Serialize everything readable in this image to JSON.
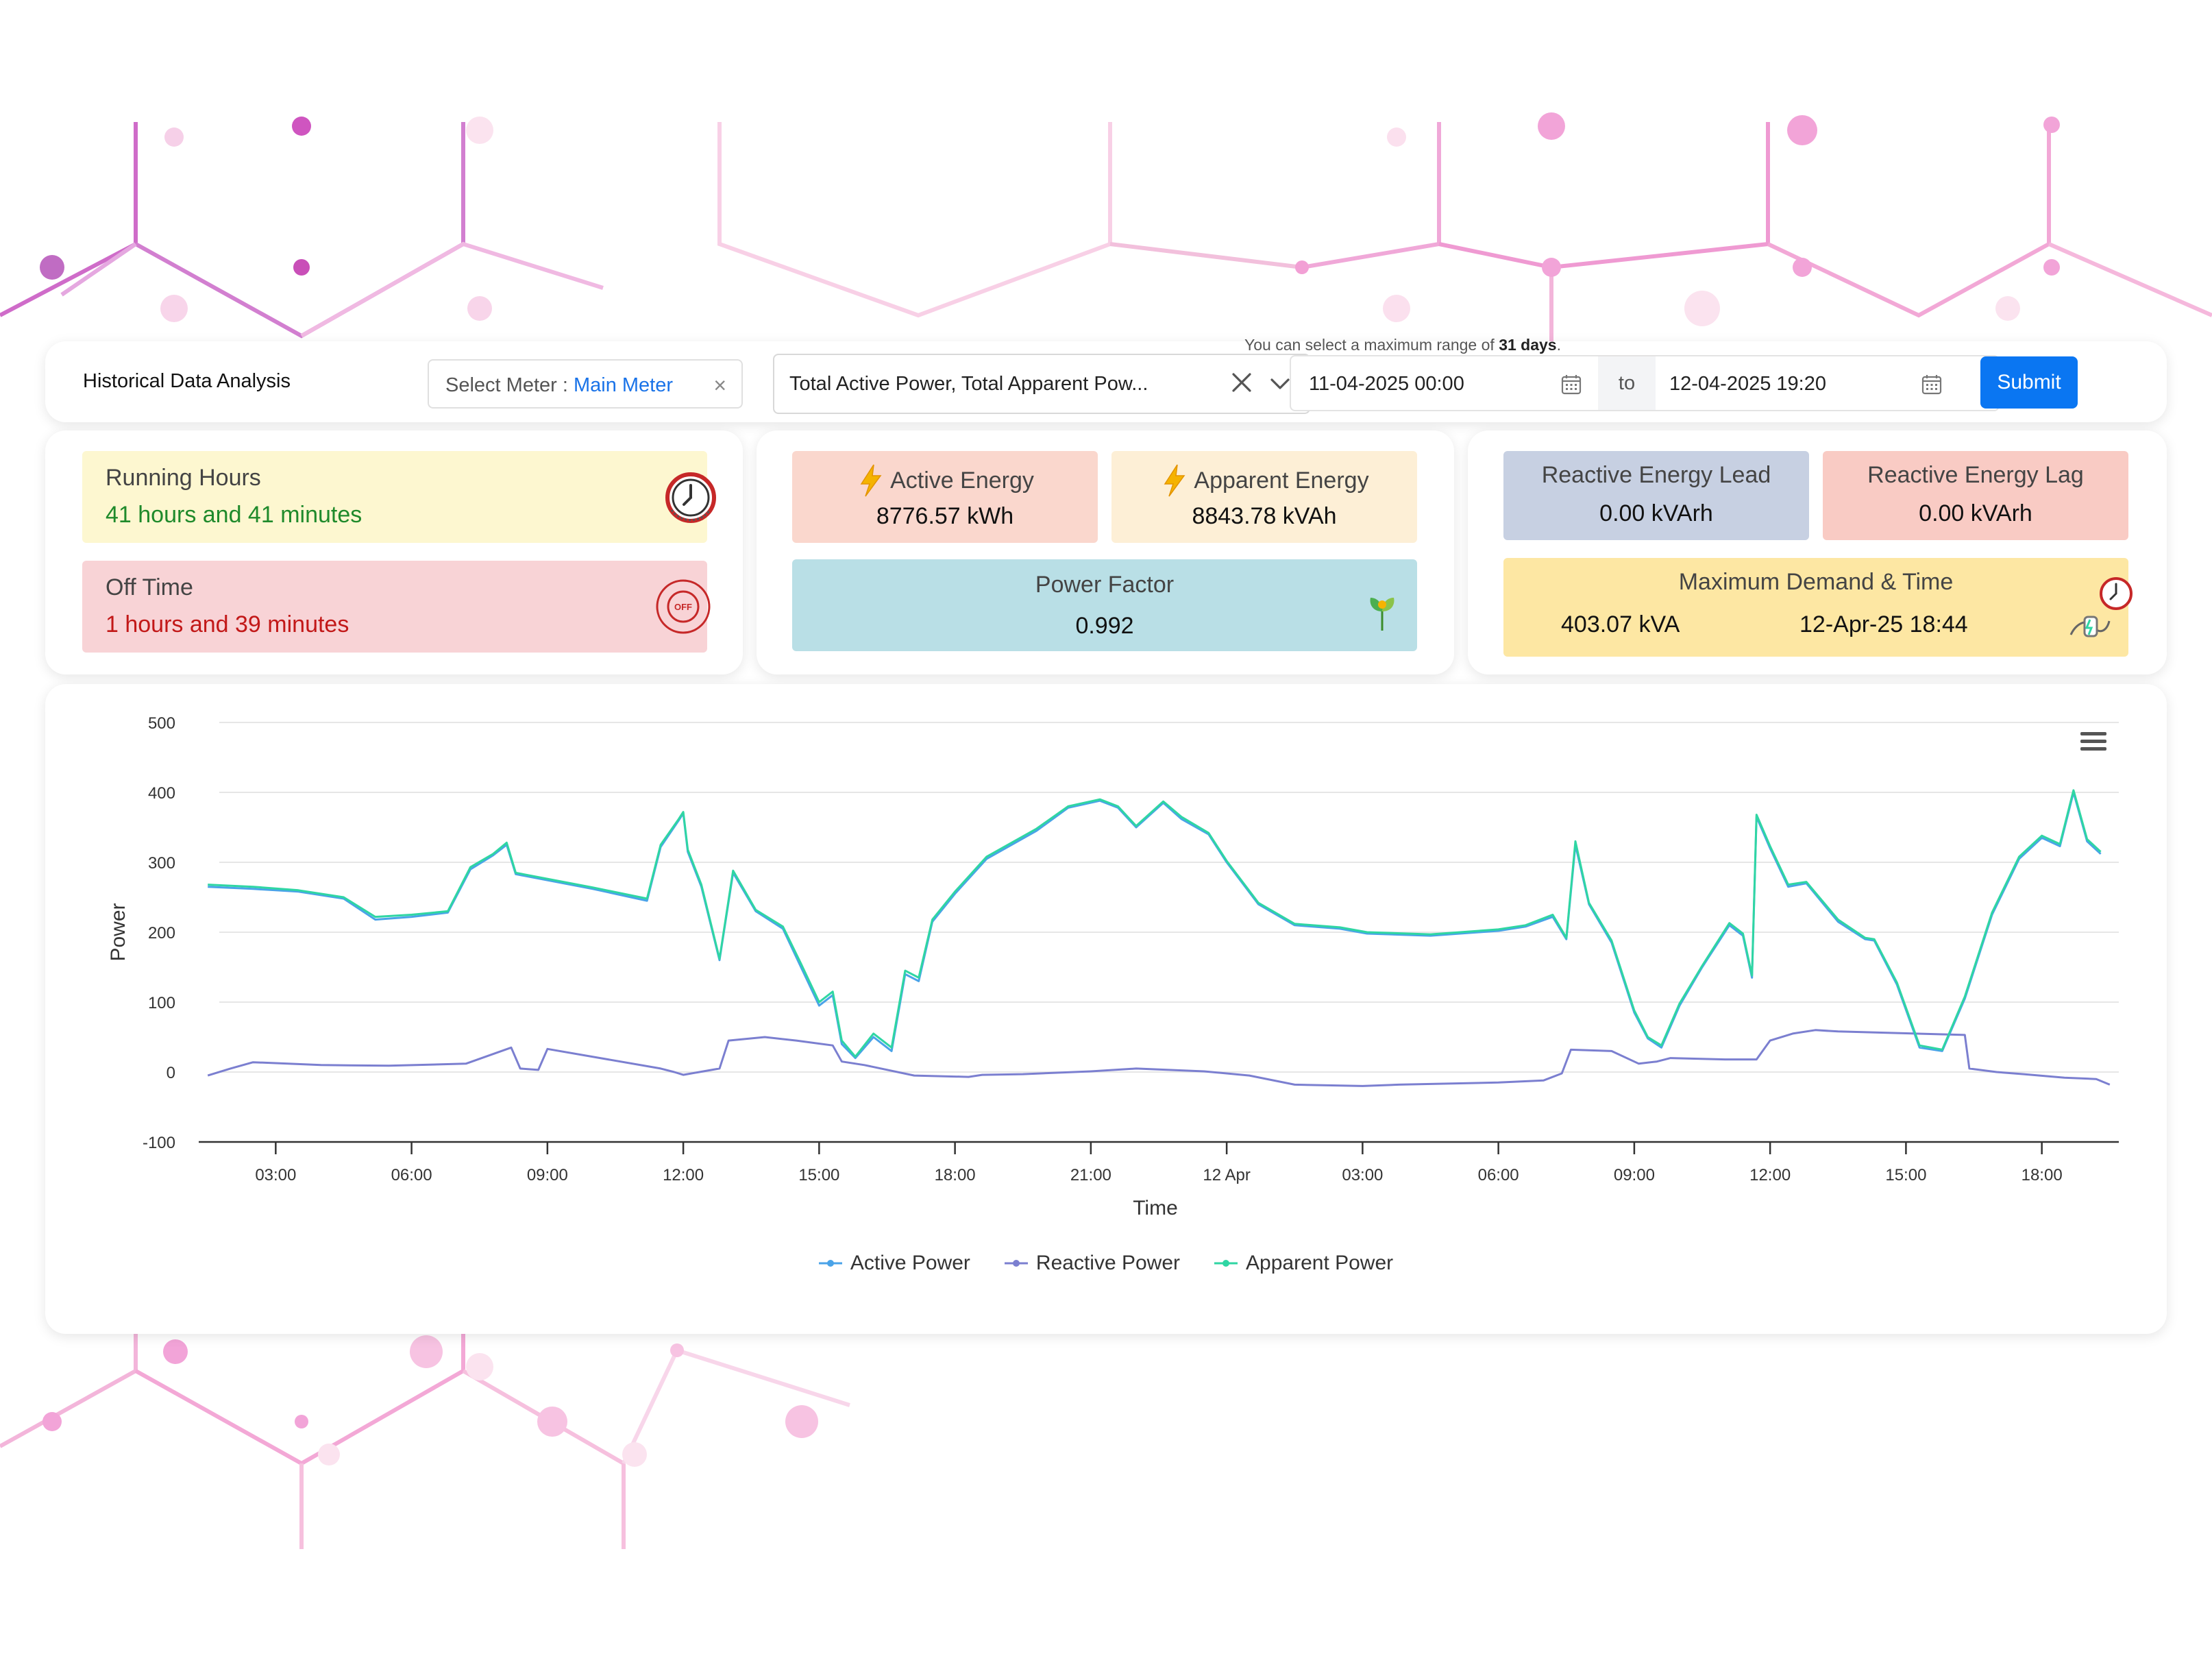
{
  "header": {
    "title": "Historical Data Analysis",
    "meter_label": "Select Meter :",
    "meter_value": "Main Meter",
    "parameters_value": "Total Active Power, Total Apparent Pow...",
    "range_hint_prefix": "You can select a maximum range of",
    "range_hint_days": "31 days",
    "range_hint_suffix": ".",
    "date_from": "11-04-2025 00:00",
    "date_to_label": "to",
    "date_to": "12-04-2025 19:20",
    "submit_label": "Submit"
  },
  "hours_panel": {
    "running_label": "Running Hours",
    "running_value": "41 hours and 41 minutes",
    "off_label": "Off Time",
    "off_value": "1 hours and 39 minutes",
    "off_icon_text": "OFF"
  },
  "energy_panel": {
    "active_energy_label": "Active Energy",
    "active_energy_value": "8776.57 kWh",
    "apparent_energy_label": "Apparent Energy",
    "apparent_energy_value": "8843.78 kVAh",
    "power_factor_label": "Power Factor",
    "power_factor_value": "0.992"
  },
  "reactive_panel": {
    "lead_label": "Reactive Energy Lead",
    "lead_value": "0.00 kVArh",
    "lag_label": "Reactive Energy Lag",
    "lag_value": "0.00 kVArh",
    "md_label": "Maximum Demand & Time",
    "md_value": "403.07 kVA",
    "md_time": "12-Apr-25 18:44"
  },
  "icons": {
    "running": "gauge-icon",
    "off": "power-off-icon",
    "bolt": "lightning-bolt-icon",
    "power_factor": "plant-icon",
    "max_demand": "gauge-plug-icon",
    "calendar": "calendar-icon",
    "clear": "close-icon",
    "dropdown": "chevron-down-icon",
    "chart_menu": "hamburger-menu-icon"
  },
  "colors": {
    "accent": "#0a76f2",
    "apparent": "#2fd6a3",
    "reactive": "#7b7fd0",
    "active": "#4aa3e8",
    "running_text": "#1f8a2b",
    "off_text": "#c21818"
  },
  "chart_data": {
    "type": "line",
    "xlabel": "Time",
    "ylabel": "Power",
    "ylim": [
      -100,
      500
    ],
    "yticks": [
      -100,
      0,
      100,
      200,
      300,
      400,
      500
    ],
    "x_range_hours": [
      1.3,
      43.7
    ],
    "xticks": [
      {
        "h": 3,
        "label": "03:00"
      },
      {
        "h": 6,
        "label": "06:00"
      },
      {
        "h": 9,
        "label": "09:00"
      },
      {
        "h": 12,
        "label": "12:00"
      },
      {
        "h": 15,
        "label": "15:00"
      },
      {
        "h": 18,
        "label": "18:00"
      },
      {
        "h": 21,
        "label": "21:00"
      },
      {
        "h": 24,
        "label": "12 Apr"
      },
      {
        "h": 27,
        "label": "03:00"
      },
      {
        "h": 30,
        "label": "06:00"
      },
      {
        "h": 33,
        "label": "09:00"
      },
      {
        "h": 36,
        "label": "12:00"
      },
      {
        "h": 39,
        "label": "15:00"
      },
      {
        "h": 42,
        "label": "18:00"
      }
    ],
    "grid": true,
    "legend_position": "bottom-center",
    "series": [
      {
        "name": "Active Power",
        "color": "#4aa3e8",
        "points": [
          [
            1.5,
            265
          ],
          [
            2.5,
            262
          ],
          [
            3.5,
            258
          ],
          [
            4.5,
            248
          ],
          [
            5.2,
            218
          ],
          [
            6,
            222
          ],
          [
            6.8,
            228
          ],
          [
            7.3,
            290
          ],
          [
            7.8,
            310
          ],
          [
            8.1,
            325
          ],
          [
            8.3,
            283
          ],
          [
            10,
            262
          ],
          [
            11.2,
            245
          ],
          [
            11.5,
            322
          ],
          [
            11.9,
            360
          ],
          [
            12,
            370
          ],
          [
            12.1,
            315
          ],
          [
            12.4,
            265
          ],
          [
            12.8,
            160
          ],
          [
            13.1,
            285
          ],
          [
            13.6,
            230
          ],
          [
            14.2,
            205
          ],
          [
            14.6,
            150
          ],
          [
            15,
            95
          ],
          [
            15.3,
            110
          ],
          [
            15.5,
            40
          ],
          [
            15.8,
            20
          ],
          [
            16.2,
            50
          ],
          [
            16.6,
            30
          ],
          [
            16.9,
            140
          ],
          [
            17.2,
            130
          ],
          [
            17.5,
            215
          ],
          [
            18,
            255
          ],
          [
            18.7,
            305
          ],
          [
            19.8,
            345
          ],
          [
            20.5,
            378
          ],
          [
            21.2,
            388
          ],
          [
            21.6,
            378
          ],
          [
            22,
            350
          ],
          [
            22.6,
            385
          ],
          [
            23,
            362
          ],
          [
            23.6,
            340
          ],
          [
            24,
            300
          ],
          [
            24.7,
            240
          ],
          [
            25.5,
            210
          ],
          [
            26.5,
            205
          ],
          [
            27.1,
            198
          ],
          [
            28.5,
            195
          ],
          [
            30,
            202
          ],
          [
            30.6,
            208
          ],
          [
            31.2,
            222
          ],
          [
            31.5,
            190
          ],
          [
            31.7,
            325
          ],
          [
            32,
            240
          ],
          [
            32.5,
            185
          ],
          [
            33,
            85
          ],
          [
            33.3,
            48
          ],
          [
            33.6,
            35
          ],
          [
            34,
            95
          ],
          [
            34.5,
            150
          ],
          [
            35.1,
            210
          ],
          [
            35.4,
            195
          ],
          [
            35.6,
            135
          ],
          [
            35.7,
            365
          ],
          [
            36,
            320
          ],
          [
            36.4,
            265
          ],
          [
            36.8,
            270
          ],
          [
            37.5,
            215
          ],
          [
            38.1,
            190
          ],
          [
            38.3,
            188
          ],
          [
            38.8,
            125
          ],
          [
            39.3,
            35
          ],
          [
            39.8,
            30
          ],
          [
            40.3,
            105
          ],
          [
            40.9,
            225
          ],
          [
            41.5,
            305
          ],
          [
            42,
            335
          ],
          [
            42.4,
            323
          ],
          [
            42.7,
            400
          ],
          [
            43,
            330
          ],
          [
            43.3,
            312
          ]
        ]
      },
      {
        "name": "Reactive Power",
        "color": "#7b7fd0",
        "points": [
          [
            1.5,
            -5
          ],
          [
            2,
            5
          ],
          [
            2.5,
            14
          ],
          [
            4,
            10
          ],
          [
            5.5,
            9
          ],
          [
            7.2,
            12
          ],
          [
            8.2,
            35
          ],
          [
            8.4,
            5
          ],
          [
            8.8,
            3
          ],
          [
            9,
            33
          ],
          [
            11.5,
            5
          ],
          [
            11.8,
            0
          ],
          [
            12,
            -4
          ],
          [
            12.8,
            5
          ],
          [
            13,
            45
          ],
          [
            13.8,
            50
          ],
          [
            14.5,
            45
          ],
          [
            15.3,
            38
          ],
          [
            15.5,
            15
          ],
          [
            16,
            10
          ],
          [
            17.1,
            -5
          ],
          [
            18.3,
            -7
          ],
          [
            18.6,
            -4
          ],
          [
            19.5,
            -3
          ],
          [
            21,
            1
          ],
          [
            22,
            5
          ],
          [
            23.5,
            1
          ],
          [
            24.5,
            -5
          ],
          [
            25.5,
            -18
          ],
          [
            27,
            -20
          ],
          [
            27.8,
            -18
          ],
          [
            30,
            -15
          ],
          [
            31,
            -12
          ],
          [
            31.4,
            -2
          ],
          [
            31.6,
            32
          ],
          [
            32.5,
            30
          ],
          [
            33.1,
            12
          ],
          [
            33.5,
            15
          ],
          [
            33.8,
            20
          ],
          [
            35,
            18
          ],
          [
            35.7,
            18
          ],
          [
            36,
            45
          ],
          [
            36.5,
            55
          ],
          [
            37,
            60
          ],
          [
            37.5,
            58
          ],
          [
            40.3,
            53
          ],
          [
            40.4,
            5
          ],
          [
            41,
            0
          ],
          [
            41.6,
            -3
          ],
          [
            42.5,
            -8
          ],
          [
            43.2,
            -10
          ],
          [
            43.5,
            -18
          ]
        ]
      },
      {
        "name": "Apparent Power",
        "color": "#2fd6a3",
        "points": [
          [
            1.5,
            268
          ],
          [
            2.5,
            265
          ],
          [
            3.5,
            260
          ],
          [
            4.5,
            250
          ],
          [
            5.2,
            222
          ],
          [
            6,
            225
          ],
          [
            6.8,
            230
          ],
          [
            7.3,
            293
          ],
          [
            7.8,
            312
          ],
          [
            8.1,
            328
          ],
          [
            8.3,
            285
          ],
          [
            10,
            264
          ],
          [
            11.2,
            248
          ],
          [
            11.5,
            325
          ],
          [
            11.9,
            362
          ],
          [
            12,
            372
          ],
          [
            12.1,
            318
          ],
          [
            12.4,
            268
          ],
          [
            12.8,
            162
          ],
          [
            13.1,
            288
          ],
          [
            13.6,
            232
          ],
          [
            14.2,
            208
          ],
          [
            14.6,
            155
          ],
          [
            15,
            100
          ],
          [
            15.3,
            115
          ],
          [
            15.5,
            45
          ],
          [
            15.8,
            22
          ],
          [
            16.2,
            55
          ],
          [
            16.6,
            35
          ],
          [
            16.9,
            145
          ],
          [
            17.2,
            135
          ],
          [
            17.5,
            218
          ],
          [
            18,
            258
          ],
          [
            18.7,
            308
          ],
          [
            19.8,
            348
          ],
          [
            20.5,
            380
          ],
          [
            21.2,
            390
          ],
          [
            21.6,
            380
          ],
          [
            22,
            352
          ],
          [
            22.6,
            387
          ],
          [
            23,
            365
          ],
          [
            23.6,
            342
          ],
          [
            24,
            302
          ],
          [
            24.7,
            242
          ],
          [
            25.5,
            212
          ],
          [
            26.5,
            207
          ],
          [
            27.1,
            200
          ],
          [
            28.5,
            197
          ],
          [
            30,
            204
          ],
          [
            30.6,
            210
          ],
          [
            31.2,
            225
          ],
          [
            31.5,
            192
          ],
          [
            31.7,
            330
          ],
          [
            32,
            242
          ],
          [
            32.5,
            188
          ],
          [
            33,
            88
          ],
          [
            33.3,
            50
          ],
          [
            33.6,
            38
          ],
          [
            34,
            98
          ],
          [
            34.5,
            152
          ],
          [
            35.1,
            213
          ],
          [
            35.4,
            198
          ],
          [
            35.6,
            138
          ],
          [
            35.7,
            368
          ],
          [
            36,
            323
          ],
          [
            36.4,
            268
          ],
          [
            36.8,
            272
          ],
          [
            37.5,
            218
          ],
          [
            38.1,
            192
          ],
          [
            38.3,
            190
          ],
          [
            38.8,
            128
          ],
          [
            39.3,
            38
          ],
          [
            39.8,
            32
          ],
          [
            40.3,
            108
          ],
          [
            40.9,
            228
          ],
          [
            41.5,
            308
          ],
          [
            42,
            338
          ],
          [
            42.4,
            326
          ],
          [
            42.7,
            403
          ],
          [
            43,
            333
          ],
          [
            43.3,
            315
          ]
        ]
      }
    ]
  }
}
